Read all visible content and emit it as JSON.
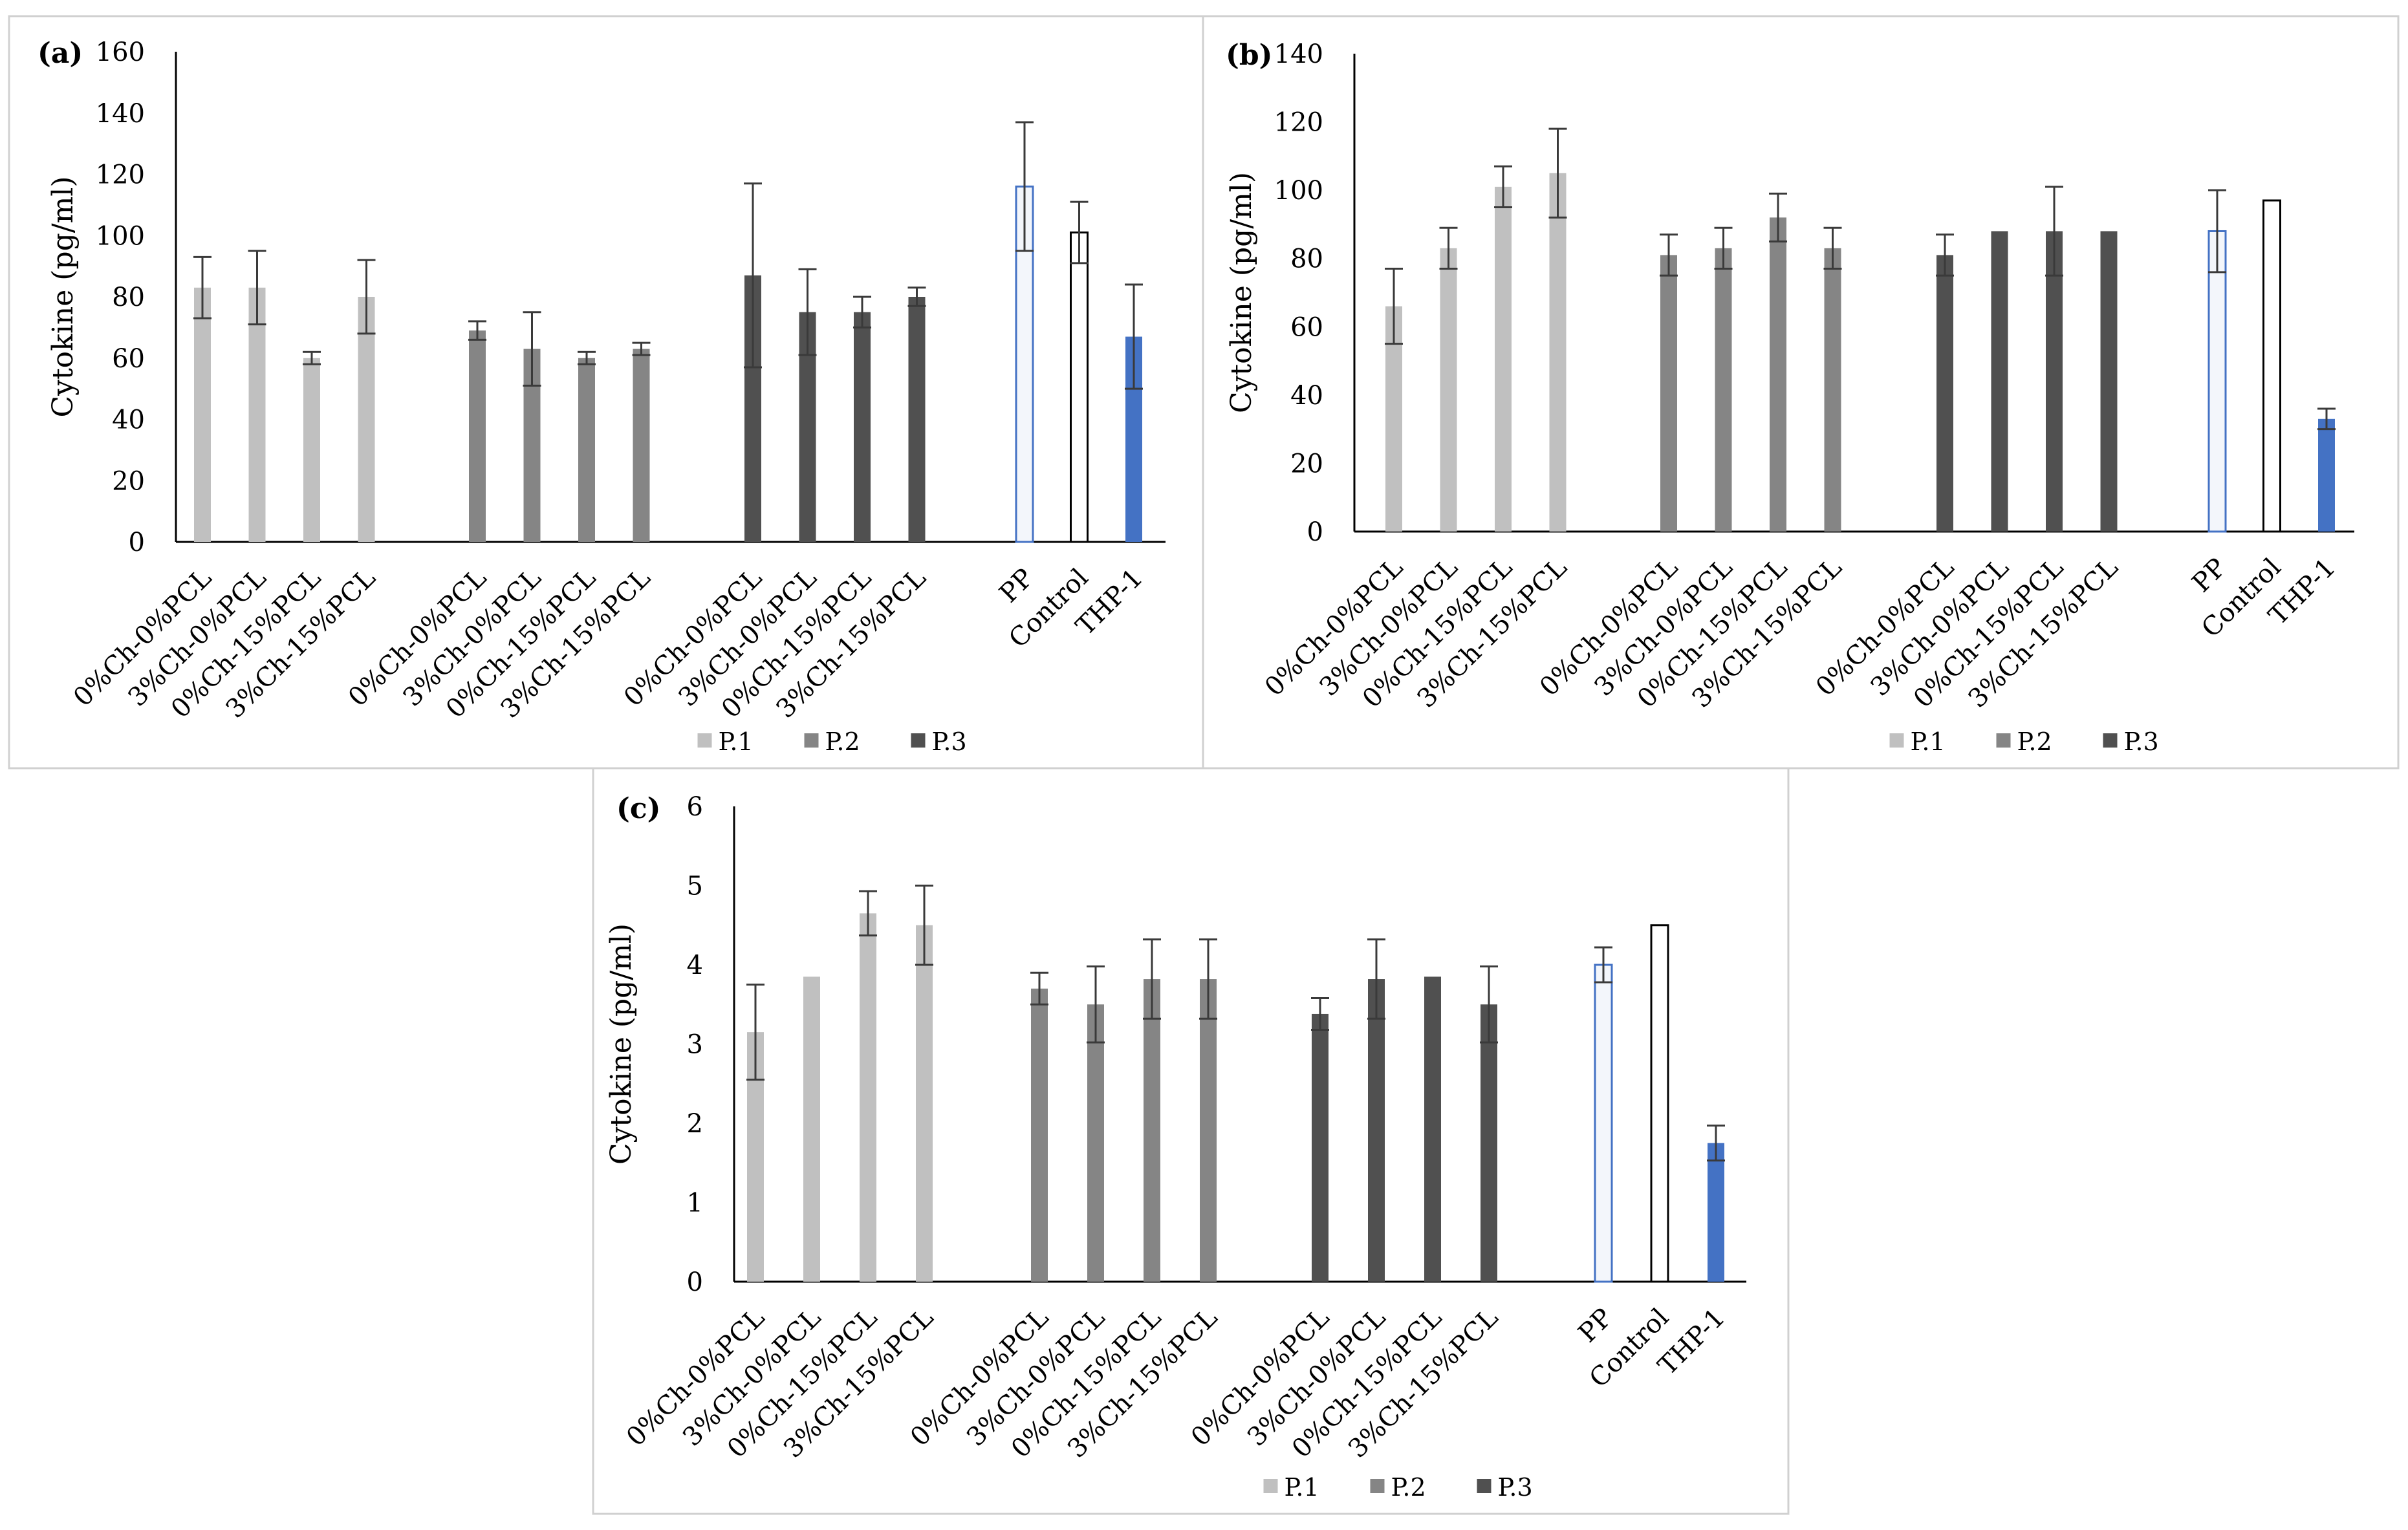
{
  "chart_data": [
    {
      "panel": "(a)",
      "type": "bar",
      "ylabel": "Cytokine (pg/ml)",
      "ylim": [
        0,
        160
      ],
      "yticks": [
        0,
        20,
        40,
        60,
        80,
        100,
        120,
        140,
        160
      ],
      "groups": [
        {
          "series": "P.1",
          "categories": [
            "0%Ch-0%PCL",
            "3%Ch-0%PCL",
            "0%Ch-15%PCL",
            "3%Ch-15%PCL"
          ],
          "values": [
            83,
            83,
            60,
            80
          ],
          "errors": [
            10,
            12,
            2,
            12
          ]
        },
        {
          "series": "P.2",
          "categories": [
            "0%Ch-0%PCL",
            "3%Ch-0%PCL",
            "0%Ch-15%PCL",
            "3%Ch-15%PCL"
          ],
          "values": [
            69,
            63,
            60,
            63
          ],
          "errors": [
            3,
            12,
            2,
            2
          ]
        },
        {
          "series": "P.3",
          "categories": [
            "0%Ch-0%PCL",
            "3%Ch-0%PCL",
            "0%Ch-15%PCL",
            "3%Ch-15%PCL"
          ],
          "values": [
            87,
            75,
            75,
            80
          ],
          "errors": [
            30,
            14,
            5,
            3
          ]
        },
        {
          "series": "controls",
          "categories": [
            "PP",
            "Control",
            "THP-1"
          ],
          "values": [
            116,
            101,
            67
          ],
          "errors": [
            21,
            10,
            17
          ]
        }
      ],
      "legend": [
        "P.1",
        "P.2",
        "P.3"
      ]
    },
    {
      "panel": "(b)",
      "type": "bar",
      "ylabel": "Cytokine (pg/ml)",
      "ylim": [
        0,
        140
      ],
      "yticks": [
        0,
        20,
        40,
        60,
        80,
        100,
        120,
        140
      ],
      "groups": [
        {
          "series": "P.1",
          "categories": [
            "0%Ch-0%PCL",
            "3%Ch-0%PCL",
            "0%Ch-15%PCL",
            "3%Ch-15%PCL"
          ],
          "values": [
            66,
            83,
            101,
            105
          ],
          "errors": [
            11,
            6,
            6,
            13
          ]
        },
        {
          "series": "P.2",
          "categories": [
            "0%Ch-0%PCL",
            "3%Ch-0%PCL",
            "0%Ch-15%PCL",
            "3%Ch-15%PCL"
          ],
          "values": [
            81,
            83,
            92,
            83
          ],
          "errors": [
            6,
            6,
            7,
            6
          ]
        },
        {
          "series": "P.3",
          "categories": [
            "0%Ch-0%PCL",
            "3%Ch-0%PCL",
            "0%Ch-15%PCL",
            "3%Ch-15%PCL"
          ],
          "values": [
            81,
            88,
            88,
            88
          ],
          "errors": [
            6,
            0,
            13,
            0
          ]
        },
        {
          "series": "controls",
          "categories": [
            "PP",
            "Control",
            "THP-1"
          ],
          "values": [
            88,
            97,
            33
          ],
          "errors": [
            12,
            0,
            3
          ]
        }
      ],
      "legend": [
        "P.1",
        "P.2",
        "P.3"
      ]
    },
    {
      "panel": "(c)",
      "type": "bar",
      "ylabel": "Cytokine (pg/ml)",
      "ylim": [
        0,
        6
      ],
      "yticks": [
        0,
        1,
        2,
        3,
        4,
        5,
        6
      ],
      "groups": [
        {
          "series": "P.1",
          "categories": [
            "0%Ch-0%PCL",
            "3%Ch-0%PCL",
            "0%Ch-15%PCL",
            "3%Ch-15%PCL"
          ],
          "values": [
            3.15,
            3.85,
            4.65,
            4.5
          ],
          "errors": [
            0.6,
            0,
            0.28,
            0.5
          ]
        },
        {
          "series": "P.2",
          "categories": [
            "0%Ch-0%PCL",
            "3%Ch-0%PCL",
            "0%Ch-15%PCL",
            "3%Ch-15%PCL"
          ],
          "values": [
            3.7,
            3.5,
            3.82,
            3.82
          ],
          "errors": [
            0.2,
            0.48,
            0.5,
            0.5
          ]
        },
        {
          "series": "P.3",
          "categories": [
            "0%Ch-0%PCL",
            "3%Ch-0%PCL",
            "0%Ch-15%PCL",
            "3%Ch-15%PCL"
          ],
          "values": [
            3.38,
            3.82,
            3.85,
            3.5
          ],
          "errors": [
            0.2,
            0.5,
            0,
            0.48
          ]
        },
        {
          "series": "controls",
          "categories": [
            "PP",
            "Control",
            "THP-1"
          ],
          "values": [
            4.0,
            4.5,
            1.75
          ],
          "errors": [
            0.22,
            0,
            0.22
          ]
        }
      ],
      "legend": [
        "P.1",
        "P.2",
        "P.3"
      ]
    }
  ],
  "colors": {
    "P.1": "#c0c0c0",
    "P.2": "#858585",
    "P.3": "#505050",
    "PP_fill": "#f3f6fb",
    "PP_stroke": "#4472c4",
    "Control_fill": "#ffffff",
    "Control_stroke": "#000000",
    "THP-1": "#4472c4",
    "axis": "#000000",
    "error_bar": "#3a3a3a",
    "frame": "#d0d0d0"
  }
}
